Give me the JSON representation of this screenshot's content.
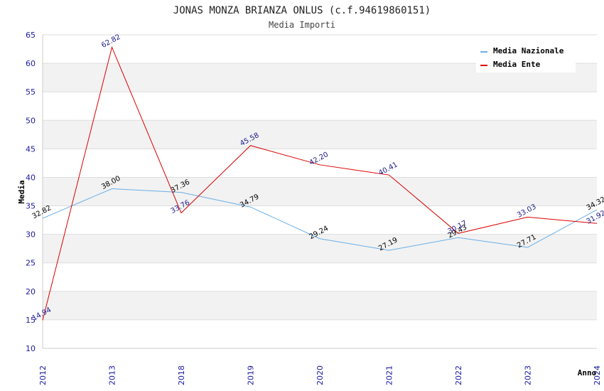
{
  "chart_data": {
    "type": "line",
    "title": "JONAS MONZA BRIANZA ONLUS (c.f.94619860151)",
    "subtitle": "Media Importi",
    "xlabel": "Anno",
    "ylabel": "Media",
    "ylim": [
      10,
      65
    ],
    "yticks": [
      "10",
      "15",
      "20",
      "25",
      "30",
      "35",
      "40",
      "45",
      "50",
      "55",
      "60",
      "65"
    ],
    "categories": [
      "2012",
      "2013",
      "2018",
      "2019",
      "2020",
      "2021",
      "2022",
      "2023",
      "2024"
    ],
    "legend_position": "top-right",
    "series": [
      {
        "name": "Media Nazionale",
        "color": "#6aaee6",
        "label_color": "#000000",
        "values": [
          32.82,
          38.0,
          37.36,
          34.79,
          29.24,
          27.19,
          29.43,
          27.71,
          34.32
        ],
        "labels": [
          "32.82",
          "38.00",
          "37.36",
          "34.79",
          "29.24",
          "27.19",
          "29.43",
          "27.71",
          "34.32"
        ]
      },
      {
        "name": "Media Ente",
        "color": "#dd0000",
        "label_color": "#1a1a8c",
        "values": [
          14.94,
          62.82,
          33.76,
          45.58,
          42.2,
          40.41,
          30.17,
          33.03,
          31.92
        ],
        "labels": [
          "14.94",
          "62.82",
          "33.76",
          "45.58",
          "42.20",
          "40.41",
          "30.17",
          "33.03",
          "31.92"
        ]
      }
    ]
  }
}
